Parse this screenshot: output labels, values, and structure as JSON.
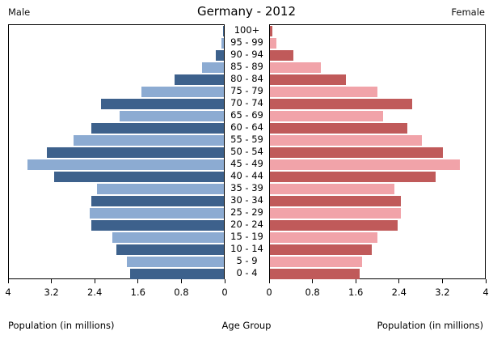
{
  "header": {
    "left": "Male",
    "title": "Germany - 2012",
    "right": "Female"
  },
  "footer": {
    "left_axis_label": "Population (in millions)",
    "center_label": "Age Group",
    "right_axis_label": "Population (in millions)"
  },
  "chart_data": {
    "type": "bar",
    "subtype": "population-pyramid",
    "title": "Germany - 2012",
    "xlabel_left": "Population (in millions)",
    "xlabel_right": "Population (in millions)",
    "center_axis_label": "Age Group",
    "xlim": [
      0,
      4
    ],
    "grid": false,
    "categories_top_to_bottom": [
      "100+",
      "95 - 99",
      "90 - 94",
      "85 - 89",
      "80 - 84",
      "75 - 79",
      "70 - 74",
      "65 - 69",
      "60 - 64",
      "55 - 59",
      "50 - 54",
      "45 - 49",
      "40 - 44",
      "35 - 39",
      "30 - 34",
      "25 - 29",
      "20 - 24",
      "15 - 19",
      "10 - 14",
      "5 - 9",
      "0 - 4"
    ],
    "series": [
      {
        "name": "Male",
        "side": "left",
        "values_top_to_bottom": [
          0.02,
          0.05,
          0.15,
          0.4,
          0.92,
          1.53,
          2.28,
          1.94,
          2.46,
          2.79,
          3.29,
          3.66,
          3.16,
          2.36,
          2.47,
          2.5,
          2.47,
          2.08,
          2.0,
          1.81,
          1.75
        ]
      },
      {
        "name": "Female",
        "side": "right",
        "values_top_to_bottom": [
          0.05,
          0.12,
          0.44,
          0.95,
          1.41,
          2.0,
          2.64,
          2.1,
          2.55,
          2.83,
          3.22,
          3.53,
          3.08,
          2.32,
          2.43,
          2.44,
          2.38,
          2.0,
          1.9,
          1.72,
          1.67
        ]
      }
    ],
    "ticks_male": [
      "4",
      "3.2",
      "2.4",
      "1.6",
      "0.8",
      "0"
    ],
    "ticks_female": [
      "0",
      "0.8",
      "1.6",
      "2.4",
      "3.2",
      "4"
    ],
    "colors": {
      "male_dark": "#3d618c",
      "male_light": "#8cabd2",
      "female_dark": "#c05a5a",
      "female_light": "#f1a3a9"
    }
  }
}
